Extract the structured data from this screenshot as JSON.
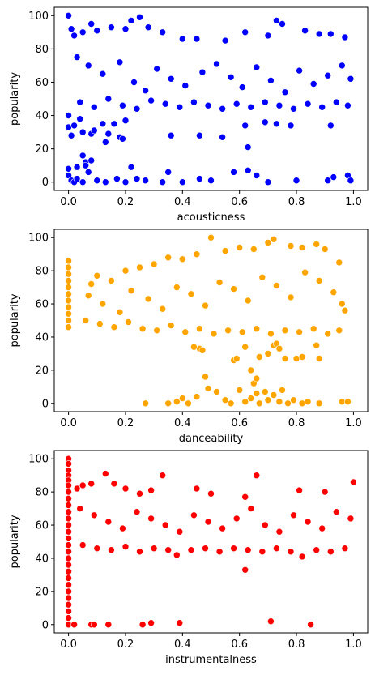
{
  "chart_data": [
    {
      "type": "scatter",
      "xlabel": "acousticness",
      "ylabel": "popularity",
      "xlim": [
        -0.05,
        1.05
      ],
      "ylim": [
        -5,
        105
      ],
      "xticks": [
        0.0,
        0.2,
        0.4,
        0.6,
        0.8,
        1.0
      ],
      "xtick_labels": [
        "0.0",
        "0.2",
        "0.4",
        "0.6",
        "0.8",
        "1.0"
      ],
      "yticks": [
        0,
        20,
        40,
        60,
        80,
        100
      ],
      "ytick_labels": [
        "0",
        "20",
        "40",
        "60",
        "80",
        "100"
      ],
      "color": "#0000ff",
      "grid": false,
      "points": [
        [
          0.0,
          100
        ],
        [
          0.01,
          92
        ],
        [
          0.02,
          88
        ],
        [
          0.05,
          90
        ],
        [
          0.08,
          95
        ],
        [
          0.1,
          91
        ],
        [
          0.15,
          93
        ],
        [
          0.2,
          92
        ],
        [
          0.25,
          99
        ],
        [
          0.22,
          97
        ],
        [
          0.28,
          93
        ],
        [
          0.33,
          90
        ],
        [
          0.4,
          86
        ],
        [
          0.45,
          86
        ],
        [
          0.55,
          85
        ],
        [
          0.62,
          90
        ],
        [
          0.7,
          88
        ],
        [
          0.73,
          97
        ],
        [
          0.75,
          95
        ],
        [
          0.83,
          91
        ],
        [
          0.88,
          89
        ],
        [
          0.92,
          89
        ],
        [
          0.97,
          87
        ],
        [
          0.03,
          75
        ],
        [
          0.07,
          70
        ],
        [
          0.12,
          65
        ],
        [
          0.18,
          72
        ],
        [
          0.23,
          60
        ],
        [
          0.27,
          55
        ],
        [
          0.31,
          68
        ],
        [
          0.36,
          62
        ],
        [
          0.41,
          58
        ],
        [
          0.47,
          66
        ],
        [
          0.52,
          71
        ],
        [
          0.57,
          63
        ],
        [
          0.61,
          57
        ],
        [
          0.66,
          69
        ],
        [
          0.71,
          61
        ],
        [
          0.76,
          54
        ],
        [
          0.81,
          67
        ],
        [
          0.86,
          59
        ],
        [
          0.91,
          64
        ],
        [
          0.96,
          70
        ],
        [
          0.99,
          62
        ],
        [
          0.04,
          48
        ],
        [
          0.09,
          45
        ],
        [
          0.14,
          50
        ],
        [
          0.19,
          46
        ],
        [
          0.24,
          44
        ],
        [
          0.29,
          49
        ],
        [
          0.34,
          47
        ],
        [
          0.39,
          45
        ],
        [
          0.44,
          48
        ],
        [
          0.49,
          46
        ],
        [
          0.54,
          44
        ],
        [
          0.59,
          47
        ],
        [
          0.64,
          45
        ],
        [
          0.69,
          48
        ],
        [
          0.74,
          46
        ],
        [
          0.79,
          44
        ],
        [
          0.84,
          47
        ],
        [
          0.89,
          45
        ],
        [
          0.94,
          48
        ],
        [
          0.98,
          46
        ],
        [
          0.0,
          40
        ],
        [
          0.0,
          33
        ],
        [
          0.01,
          28
        ],
        [
          0.02,
          34
        ],
        [
          0.04,
          38
        ],
        [
          0.05,
          30
        ],
        [
          0.06,
          12
        ],
        [
          0.05,
          16
        ],
        [
          0.06,
          10
        ],
        [
          0.03,
          9
        ],
        [
          0.07,
          6
        ],
        [
          0.08,
          13
        ],
        [
          0.08,
          29
        ],
        [
          0.09,
          31
        ],
        [
          0.12,
          35
        ],
        [
          0.13,
          24
        ],
        [
          0.14,
          29
        ],
        [
          0.16,
          35
        ],
        [
          0.18,
          27
        ],
        [
          0.19,
          26
        ],
        [
          0.2,
          37
        ],
        [
          0.36,
          28
        ],
        [
          0.46,
          28
        ],
        [
          0.54,
          27
        ],
        [
          0.63,
          21
        ],
        [
          0.62,
          34
        ],
        [
          0.69,
          36
        ],
        [
          0.73,
          35
        ],
        [
          0.78,
          34
        ],
        [
          0.92,
          34
        ],
        [
          0.0,
          8
        ],
        [
          0.0,
          4
        ],
        [
          0.01,
          1
        ],
        [
          0.02,
          0
        ],
        [
          0.03,
          2
        ],
        [
          0.05,
          0
        ],
        [
          0.1,
          1
        ],
        [
          0.13,
          0
        ],
        [
          0.17,
          2
        ],
        [
          0.2,
          0
        ],
        [
          0.22,
          9
        ],
        [
          0.24,
          2
        ],
        [
          0.27,
          1
        ],
        [
          0.33,
          0
        ],
        [
          0.35,
          6
        ],
        [
          0.4,
          0
        ],
        [
          0.46,
          2
        ],
        [
          0.5,
          1
        ],
        [
          0.58,
          6
        ],
        [
          0.63,
          7
        ],
        [
          0.66,
          4
        ],
        [
          0.7,
          0
        ],
        [
          0.8,
          1
        ],
        [
          0.91,
          1
        ],
        [
          0.93,
          3
        ],
        [
          0.98,
          4
        ],
        [
          0.99,
          1
        ]
      ]
    },
    {
      "type": "scatter",
      "xlabel": "danceability",
      "ylabel": "popularity",
      "xlim": [
        -0.05,
        1.05
      ],
      "ylim": [
        -5,
        105
      ],
      "xticks": [
        0.0,
        0.2,
        0.4,
        0.6,
        0.8,
        1.0
      ],
      "xtick_labels": [
        "0.0",
        "0.2",
        "0.4",
        "0.6",
        "0.8",
        "1.0"
      ],
      "yticks": [
        0,
        20,
        40,
        60,
        80,
        100
      ],
      "ytick_labels": [
        "0",
        "20",
        "40",
        "60",
        "80",
        "100"
      ],
      "color": "#ffa500",
      "grid": false,
      "points": [
        [
          0.0,
          86
        ],
        [
          0.0,
          82
        ],
        [
          0.0,
          78
        ],
        [
          0.0,
          74
        ],
        [
          0.0,
          70
        ],
        [
          0.0,
          66
        ],
        [
          0.0,
          62
        ],
        [
          0.0,
          58
        ],
        [
          0.0,
          54
        ],
        [
          0.0,
          50
        ],
        [
          0.0,
          46
        ],
        [
          0.08,
          72
        ],
        [
          0.1,
          77
        ],
        [
          0.15,
          74
        ],
        [
          0.2,
          80
        ],
        [
          0.25,
          82
        ],
        [
          0.3,
          84
        ],
        [
          0.35,
          88
        ],
        [
          0.4,
          87
        ],
        [
          0.45,
          90
        ],
        [
          0.5,
          100
        ],
        [
          0.55,
          92
        ],
        [
          0.6,
          94
        ],
        [
          0.65,
          93
        ],
        [
          0.7,
          97
        ],
        [
          0.72,
          99
        ],
        [
          0.78,
          95
        ],
        [
          0.82,
          94
        ],
        [
          0.87,
          96
        ],
        [
          0.9,
          93
        ],
        [
          0.95,
          85
        ],
        [
          0.07,
          65
        ],
        [
          0.12,
          60
        ],
        [
          0.18,
          55
        ],
        [
          0.22,
          68
        ],
        [
          0.28,
          63
        ],
        [
          0.33,
          57
        ],
        [
          0.38,
          70
        ],
        [
          0.43,
          66
        ],
        [
          0.48,
          59
        ],
        [
          0.53,
          73
        ],
        [
          0.58,
          69
        ],
        [
          0.63,
          62
        ],
        [
          0.68,
          76
        ],
        [
          0.73,
          71
        ],
        [
          0.78,
          64
        ],
        [
          0.83,
          79
        ],
        [
          0.88,
          74
        ],
        [
          0.93,
          67
        ],
        [
          0.96,
          60
        ],
        [
          0.97,
          56
        ],
        [
          0.06,
          50
        ],
        [
          0.11,
          48
        ],
        [
          0.16,
          46
        ],
        [
          0.21,
          49
        ],
        [
          0.26,
          45
        ],
        [
          0.31,
          44
        ],
        [
          0.36,
          47
        ],
        [
          0.41,
          43
        ],
        [
          0.46,
          45
        ],
        [
          0.51,
          42
        ],
        [
          0.56,
          44
        ],
        [
          0.61,
          43
        ],
        [
          0.66,
          45
        ],
        [
          0.71,
          42
        ],
        [
          0.76,
          44
        ],
        [
          0.81,
          43
        ],
        [
          0.86,
          45
        ],
        [
          0.91,
          42
        ],
        [
          0.95,
          44
        ],
        [
          0.46,
          33
        ],
        [
          0.47,
          32
        ],
        [
          0.44,
          34
        ],
        [
          0.58,
          26
        ],
        [
          0.59,
          27
        ],
        [
          0.62,
          34
        ],
        [
          0.64,
          20
        ],
        [
          0.65,
          12
        ],
        [
          0.66,
          15
        ],
        [
          0.67,
          28
        ],
        [
          0.7,
          30
        ],
        [
          0.72,
          35
        ],
        [
          0.73,
          36
        ],
        [
          0.74,
          33
        ],
        [
          0.76,
          27
        ],
        [
          0.8,
          27
        ],
        [
          0.82,
          28
        ],
        [
          0.87,
          35
        ],
        [
          0.88,
          27
        ],
        [
          0.27,
          0
        ],
        [
          0.35,
          0
        ],
        [
          0.38,
          1
        ],
        [
          0.4,
          3
        ],
        [
          0.42,
          0
        ],
        [
          0.45,
          4
        ],
        [
          0.48,
          16
        ],
        [
          0.49,
          9
        ],
        [
          0.52,
          7
        ],
        [
          0.55,
          2
        ],
        [
          0.57,
          0
        ],
        [
          0.6,
          8
        ],
        [
          0.62,
          1
        ],
        [
          0.64,
          3
        ],
        [
          0.66,
          6
        ],
        [
          0.67,
          0
        ],
        [
          0.69,
          7
        ],
        [
          0.7,
          2
        ],
        [
          0.72,
          5
        ],
        [
          0.74,
          1
        ],
        [
          0.75,
          8
        ],
        [
          0.77,
          0
        ],
        [
          0.79,
          2
        ],
        [
          0.82,
          0
        ],
        [
          0.84,
          1
        ],
        [
          0.88,
          0
        ],
        [
          0.96,
          1
        ],
        [
          0.98,
          1
        ]
      ]
    },
    {
      "type": "scatter",
      "xlabel": "instrumentalness",
      "ylabel": "popularity",
      "xlim": [
        -0.05,
        1.05
      ],
      "ylim": [
        -5,
        105
      ],
      "xticks": [
        0.0,
        0.2,
        0.4,
        0.6,
        0.8,
        1.0
      ],
      "xtick_labels": [
        "0.0",
        "0.2",
        "0.4",
        "0.6",
        "0.8",
        "1.0"
      ],
      "yticks": [
        0,
        20,
        40,
        60,
        80,
        100
      ],
      "ytick_labels": [
        "0",
        "20",
        "40",
        "60",
        "80",
        "100"
      ],
      "color": "#ff0000",
      "grid": false,
      "points": [
        [
          0.0,
          100
        ],
        [
          0.0,
          97
        ],
        [
          0.0,
          93
        ],
        [
          0.0,
          90
        ],
        [
          0.0,
          87
        ],
        [
          0.0,
          84
        ],
        [
          0.0,
          80
        ],
        [
          0.0,
          76
        ],
        [
          0.0,
          72
        ],
        [
          0.0,
          68
        ],
        [
          0.0,
          64
        ],
        [
          0.0,
          60
        ],
        [
          0.0,
          56
        ],
        [
          0.0,
          52
        ],
        [
          0.0,
          48
        ],
        [
          0.0,
          44
        ],
        [
          0.0,
          40
        ],
        [
          0.0,
          36
        ],
        [
          0.0,
          32
        ],
        [
          0.0,
          28
        ],
        [
          0.0,
          24
        ],
        [
          0.0,
          20
        ],
        [
          0.0,
          16
        ],
        [
          0.0,
          12
        ],
        [
          0.0,
          8
        ],
        [
          0.0,
          4
        ],
        [
          0.0,
          0
        ],
        [
          0.02,
          0
        ],
        [
          0.03,
          82
        ],
        [
          0.05,
          84
        ],
        [
          0.08,
          85
        ],
        [
          0.13,
          91
        ],
        [
          0.16,
          85
        ],
        [
          0.2,
          82
        ],
        [
          0.25,
          79
        ],
        [
          0.29,
          81
        ],
        [
          0.33,
          90
        ],
        [
          0.45,
          82
        ],
        [
          0.5,
          79
        ],
        [
          0.62,
          77
        ],
        [
          0.66,
          90
        ],
        [
          0.81,
          81
        ],
        [
          0.9,
          80
        ],
        [
          1.0,
          86
        ],
        [
          0.04,
          70
        ],
        [
          0.09,
          66
        ],
        [
          0.14,
          62
        ],
        [
          0.19,
          58
        ],
        [
          0.24,
          68
        ],
        [
          0.29,
          64
        ],
        [
          0.34,
          60
        ],
        [
          0.39,
          56
        ],
        [
          0.44,
          66
        ],
        [
          0.49,
          62
        ],
        [
          0.54,
          58
        ],
        [
          0.59,
          64
        ],
        [
          0.64,
          70
        ],
        [
          0.69,
          60
        ],
        [
          0.74,
          56
        ],
        [
          0.79,
          66
        ],
        [
          0.84,
          62
        ],
        [
          0.89,
          58
        ],
        [
          0.94,
          68
        ],
        [
          0.99,
          64
        ],
        [
          0.05,
          48
        ],
        [
          0.1,
          46
        ],
        [
          0.15,
          45
        ],
        [
          0.2,
          47
        ],
        [
          0.25,
          44
        ],
        [
          0.3,
          46
        ],
        [
          0.35,
          45
        ],
        [
          0.38,
          42
        ],
        [
          0.43,
          45
        ],
        [
          0.48,
          46
        ],
        [
          0.53,
          44
        ],
        [
          0.58,
          46
        ],
        [
          0.63,
          45
        ],
        [
          0.68,
          44
        ],
        [
          0.73,
          46
        ],
        [
          0.78,
          44
        ],
        [
          0.82,
          41
        ],
        [
          0.87,
          45
        ],
        [
          0.92,
          44
        ],
        [
          0.97,
          46
        ],
        [
          0.62,
          33
        ],
        [
          0.08,
          0
        ],
        [
          0.09,
          0
        ],
        [
          0.14,
          0
        ],
        [
          0.26,
          0
        ],
        [
          0.29,
          1
        ],
        [
          0.39,
          1
        ],
        [
          0.71,
          2
        ],
        [
          0.85,
          0
        ]
      ]
    }
  ]
}
